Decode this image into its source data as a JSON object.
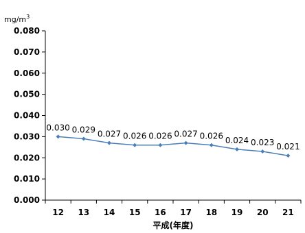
{
  "chart_data": {
    "type": "line",
    "ylabel_unit": "mg/m",
    "ylabel_unit_sup": "3",
    "xlabel": "平成(年度)",
    "categories": [
      "12",
      "13",
      "14",
      "15",
      "16",
      "17",
      "18",
      "19",
      "20",
      "21"
    ],
    "series": [
      {
        "values": [
          0.03,
          0.029,
          0.027,
          0.026,
          0.026,
          0.027,
          0.026,
          0.024,
          0.023,
          0.021
        ],
        "labels": [
          "0.030",
          "0.029",
          "0.027",
          "0.026",
          "0.026",
          "0.027",
          "0.026",
          "0.024",
          "0.023",
          "0.021"
        ],
        "color": "#4a7ebb"
      }
    ],
    "ylim": [
      0,
      0.08
    ],
    "yticks": [
      "0.000",
      "0.010",
      "0.020",
      "0.030",
      "0.040",
      "0.050",
      "0.060",
      "0.070",
      "0.080"
    ],
    "grid": false,
    "legend": "none"
  }
}
